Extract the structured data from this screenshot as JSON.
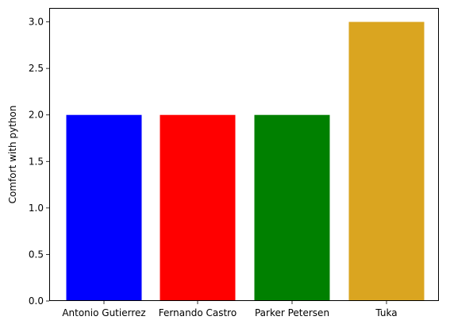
{
  "chart_data": {
    "type": "bar",
    "title": "",
    "xlabel": "",
    "ylabel": "Comfort with python",
    "categories": [
      "Antonio Gutierrez",
      "Fernando Castro",
      "Parker Petersen",
      "Tuka"
    ],
    "values": [
      2,
      2,
      2,
      3
    ],
    "colors": [
      "#0000ff",
      "#ff0000",
      "#008000",
      "#daa520"
    ],
    "ylim": [
      0,
      3.15
    ],
    "yticks": [
      0.0,
      0.5,
      1.0,
      1.5,
      2.0,
      2.5,
      3.0
    ],
    "ytick_labels": [
      "0.0",
      "0.5",
      "1.0",
      "1.5",
      "2.0",
      "2.5",
      "3.0"
    ],
    "grid": false,
    "legend": "none"
  }
}
